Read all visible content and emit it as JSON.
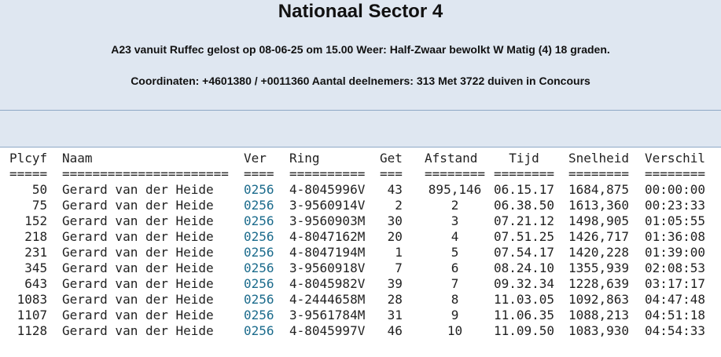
{
  "header": {
    "title": "Nationaal Sector 4",
    "line1": "A23 vanuit Ruffec gelost op 08-06-25 om 15.00 Weer: Half-Zwaar bewolkt W Matig (4) 18 graden.",
    "line2": "Coordinaten: +4601380 / +0011360 Aantal deelnemers: 313 Met 3722 duiven in Concours"
  },
  "table": {
    "columns": [
      "Plcyf",
      "Naam",
      "Ver",
      "Ring",
      "Get",
      "Afstand",
      "Tijd",
      "Snelheid",
      "Verschil"
    ],
    "separators": [
      "=====",
      "======================",
      "====",
      "==========",
      "===",
      "========",
      "========",
      "========",
      "========"
    ],
    "rows": [
      [
        "50",
        "Gerard van der Heide",
        "0256",
        "4-8045996V",
        "43",
        "895,146",
        "06.15.17",
        "1684,875",
        "00:00:00"
      ],
      [
        "75",
        "Gerard van der Heide",
        "0256",
        "3-9560914V",
        "2",
        "2",
        "06.38.50",
        "1613,360",
        "00:23:33"
      ],
      [
        "152",
        "Gerard van der Heide",
        "0256",
        "3-9560903M",
        "30",
        "3",
        "07.21.12",
        "1498,905",
        "01:05:55"
      ],
      [
        "218",
        "Gerard van der Heide",
        "0256",
        "4-8047162M",
        "20",
        "4",
        "07.51.25",
        "1426,717",
        "01:36:08"
      ],
      [
        "231",
        "Gerard van der Heide",
        "0256",
        "4-8047194M",
        "1",
        "5",
        "07.54.17",
        "1420,228",
        "01:39:00"
      ],
      [
        "345",
        "Gerard van der Heide",
        "0256",
        "3-9560918V",
        "7",
        "6",
        "08.24.10",
        "1355,939",
        "02:08:53"
      ],
      [
        "643",
        "Gerard van der Heide",
        "0256",
        "4-8045982V",
        "39",
        "7",
        "09.32.34",
        "1228,639",
        "03:17:17"
      ],
      [
        "1083",
        "Gerard van der Heide",
        "0256",
        "4-2444658M",
        "28",
        "8",
        "11.03.05",
        "1092,863",
        "04:47:48"
      ],
      [
        "1107",
        "Gerard van der Heide",
        "0256",
        "3-9561784M",
        "31",
        "9",
        "11.06.35",
        "1088,213",
        "04:51:18"
      ],
      [
        "1128",
        "Gerard van der Heide",
        "0256",
        "4-8045997V",
        "46",
        "10",
        "11.09.50",
        "1083,930",
        "04:54:33"
      ]
    ]
  }
}
